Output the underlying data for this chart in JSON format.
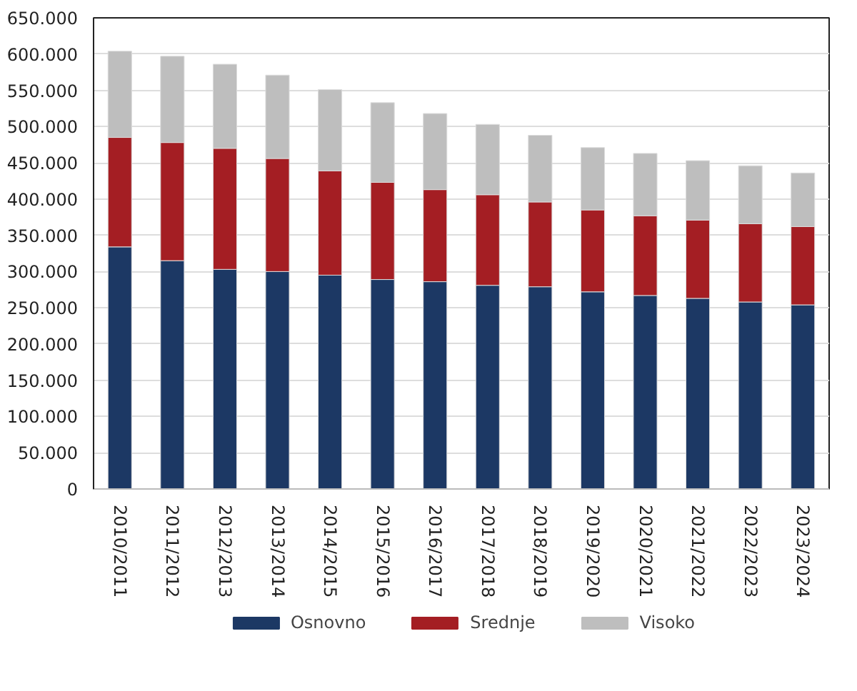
{
  "chart_data": {
    "type": "bar",
    "stacked": true,
    "categories": [
      "2010/2011",
      "2011/2012",
      "2012/2013",
      "2013/2014",
      "2014/2015",
      "2015/2016",
      "2016/2017",
      "2017/2018",
      "2018/2019",
      "2019/2020",
      "2020/2021",
      "2021/2022",
      "2022/2023",
      "2023/2024"
    ],
    "series": [
      {
        "name": "Osnovno",
        "color": "#1c3864",
        "values": [
          334000,
          315000,
          303000,
          300000,
          295000,
          289000,
          286000,
          281000,
          279000,
          272000,
          267000,
          263000,
          258000,
          254000
        ]
      },
      {
        "name": "Srednje",
        "color": "#a41e23",
        "values": [
          151000,
          163000,
          167000,
          156000,
          144000,
          134000,
          127000,
          125000,
          117000,
          113000,
          110000,
          108000,
          108000,
          108000
        ]
      },
      {
        "name": "Visoko",
        "color": "#bebebe",
        "values": [
          119000,
          119000,
          116000,
          115000,
          112000,
          110000,
          105000,
          97000,
          92000,
          86000,
          86000,
          82000,
          80000,
          74000
        ]
      }
    ],
    "ylim": [
      0,
      650000
    ],
    "yticks": [
      {
        "value": 0,
        "label": "0"
      },
      {
        "value": 50000,
        "label": "50.000"
      },
      {
        "value": 100000,
        "label": "100.000"
      },
      {
        "value": 150000,
        "label": "150.000"
      },
      {
        "value": 200000,
        "label": "200.000"
      },
      {
        "value": 250000,
        "label": "250.000"
      },
      {
        "value": 300000,
        "label": "300.000"
      },
      {
        "value": 350000,
        "label": "350.000"
      },
      {
        "value": 400000,
        "label": "400.000"
      },
      {
        "value": 450000,
        "label": "450.000"
      },
      {
        "value": 500000,
        "label": "500.000"
      },
      {
        "value": 550000,
        "label": "550.000"
      },
      {
        "value": 600000,
        "label": "600.000"
      },
      {
        "value": 650000,
        "label": "650.000"
      }
    ],
    "grid": "y",
    "legend": "bottom"
  }
}
